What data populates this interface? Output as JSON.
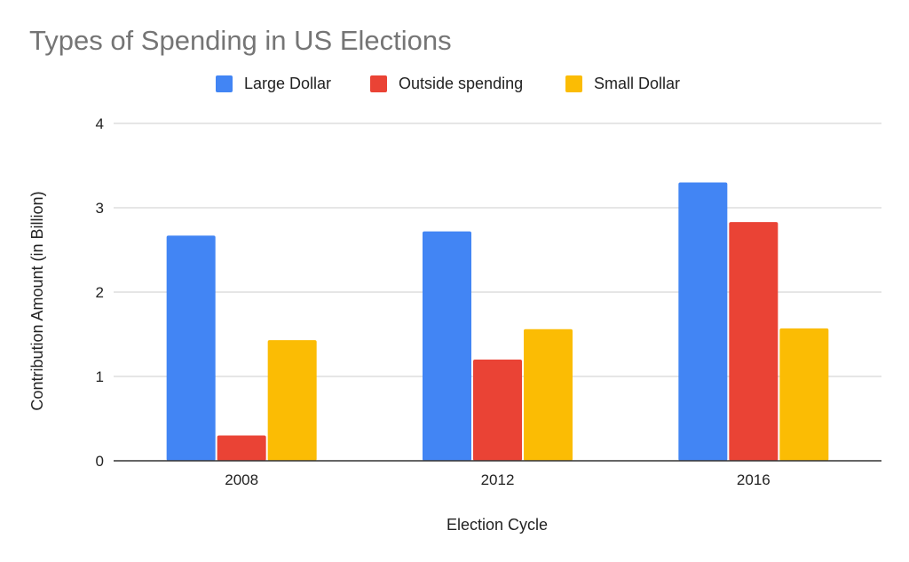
{
  "chart_data": {
    "type": "bar",
    "title": "Types of Spending in US Elections",
    "xlabel": "Election Cycle",
    "ylabel": "Contribution Amount (in Billion)",
    "categories": [
      "2008",
      "2012",
      "2016"
    ],
    "series": [
      {
        "name": "Large Dollar",
        "color": "#4285f4",
        "values": [
          2.67,
          2.72,
          3.3
        ]
      },
      {
        "name": "Outside spending",
        "color": "#ea4335",
        "values": [
          0.3,
          1.2,
          2.83
        ]
      },
      {
        "name": "Small Dollar",
        "color": "#fbbc04",
        "values": [
          1.43,
          1.56,
          1.57
        ]
      }
    ],
    "ylim": [
      0,
      4
    ],
    "yticks": [
      "0",
      "1",
      "2",
      "3",
      "4"
    ],
    "grid": true,
    "legend_position": "top"
  }
}
